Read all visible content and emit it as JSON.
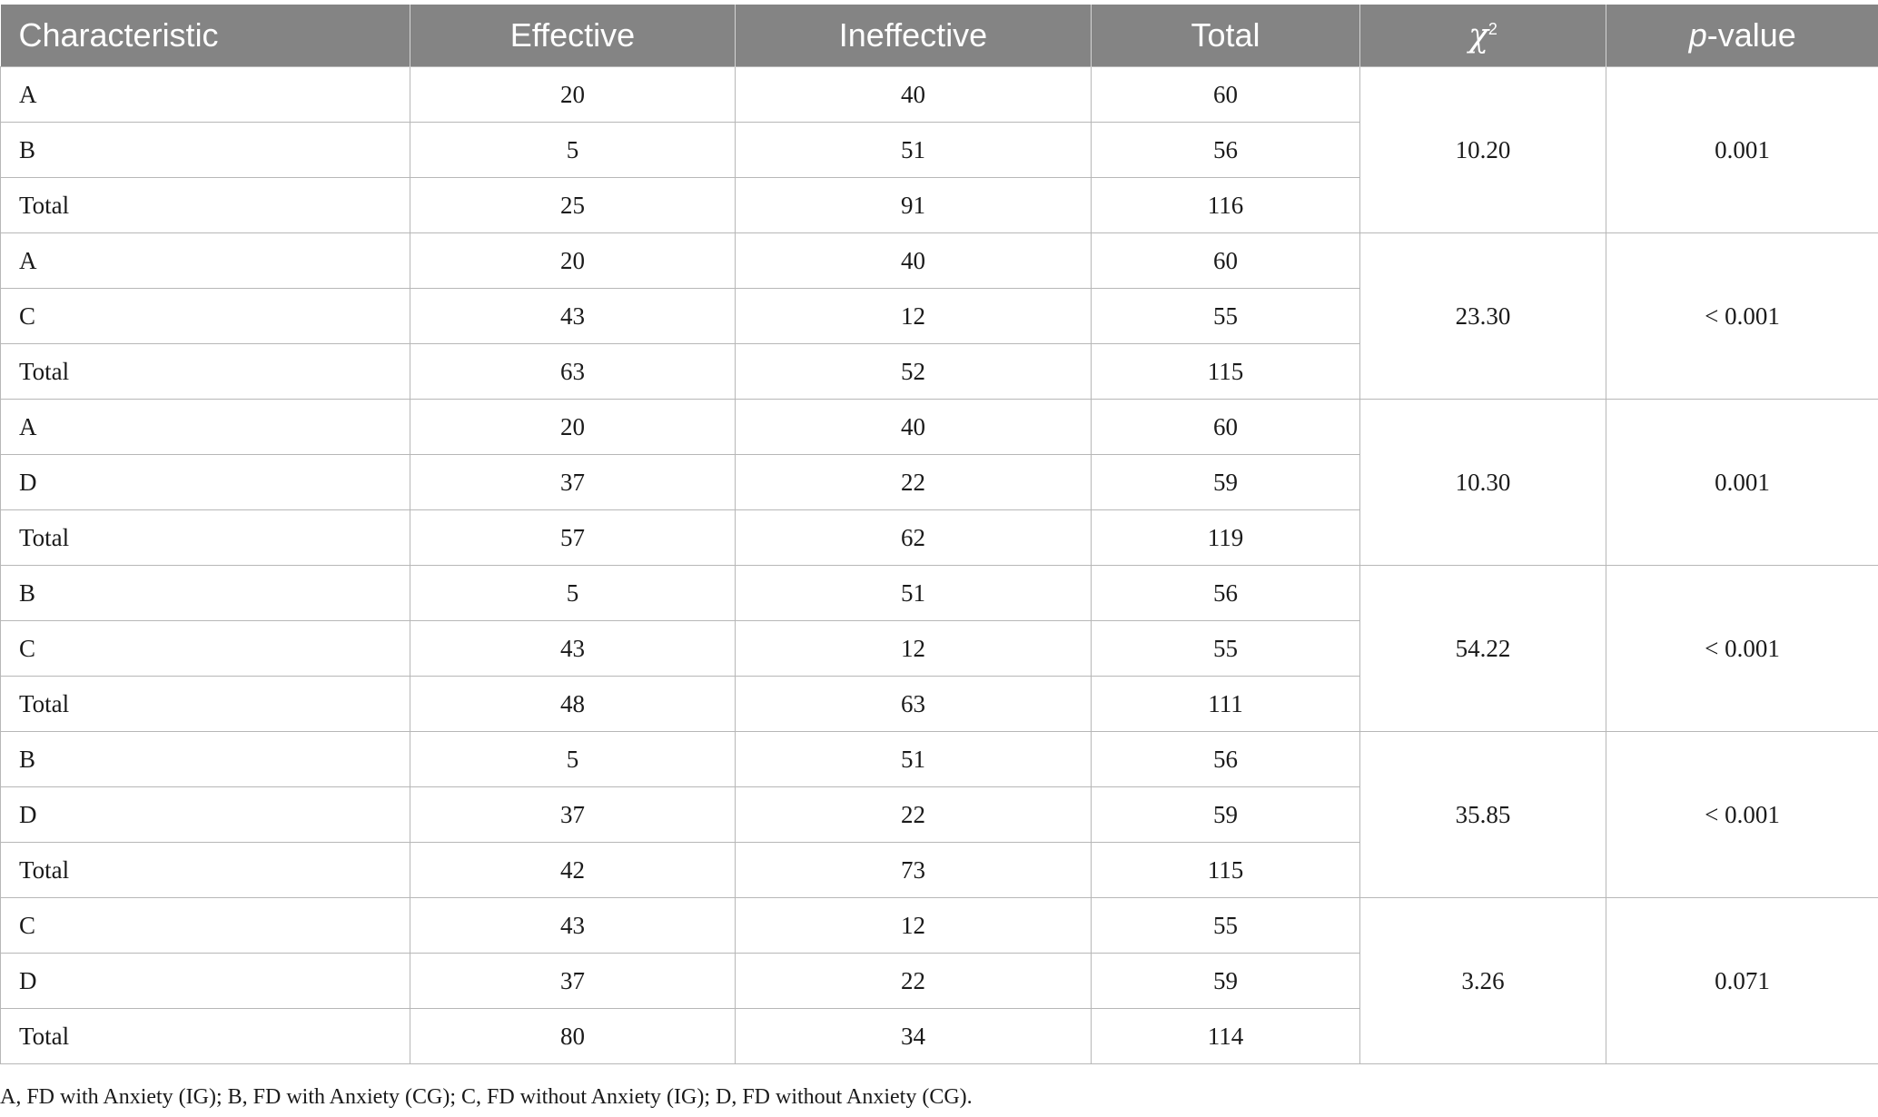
{
  "table": {
    "headers": {
      "characteristic": "Characteristic",
      "effective": "Effective",
      "ineffective": "Ineffective",
      "total": "Total",
      "chi_symbol": "χ",
      "chi_superscript": "2",
      "p_italic": "p",
      "p_rest": "-value"
    },
    "groups": [
      {
        "chi2": "10.20",
        "p": "0.001",
        "rows": [
          {
            "label": "A",
            "effective": "20",
            "ineffective": "40",
            "total": "60"
          },
          {
            "label": "B",
            "effective": "5",
            "ineffective": "51",
            "total": "56"
          },
          {
            "label": "Total",
            "effective": "25",
            "ineffective": "91",
            "total": "116"
          }
        ]
      },
      {
        "chi2": "23.30",
        "p": "< 0.001",
        "rows": [
          {
            "label": "A",
            "effective": "20",
            "ineffective": "40",
            "total": "60"
          },
          {
            "label": "C",
            "effective": "43",
            "ineffective": "12",
            "total": "55"
          },
          {
            "label": "Total",
            "effective": "63",
            "ineffective": "52",
            "total": "115"
          }
        ]
      },
      {
        "chi2": "10.30",
        "p": "0.001",
        "rows": [
          {
            "label": "A",
            "effective": "20",
            "ineffective": "40",
            "total": "60"
          },
          {
            "label": "D",
            "effective": "37",
            "ineffective": "22",
            "total": "59"
          },
          {
            "label": "Total",
            "effective": "57",
            "ineffective": "62",
            "total": "119"
          }
        ]
      },
      {
        "chi2": "54.22",
        "p": "< 0.001",
        "rows": [
          {
            "label": "B",
            "effective": "5",
            "ineffective": "51",
            "total": "56"
          },
          {
            "label": "C",
            "effective": "43",
            "ineffective": "12",
            "total": "55"
          },
          {
            "label": "Total",
            "effective": "48",
            "ineffective": "63",
            "total": "111"
          }
        ]
      },
      {
        "chi2": "35.85",
        "p": "< 0.001",
        "rows": [
          {
            "label": "B",
            "effective": "5",
            "ineffective": "51",
            "total": "56"
          },
          {
            "label": "D",
            "effective": "37",
            "ineffective": "22",
            "total": "59"
          },
          {
            "label": "Total",
            "effective": "42",
            "ineffective": "73",
            "total": "115"
          }
        ]
      },
      {
        "chi2": "3.26",
        "p": "0.071",
        "rows": [
          {
            "label": "C",
            "effective": "43",
            "ineffective": "12",
            "total": "55"
          },
          {
            "label": "D",
            "effective": "37",
            "ineffective": "22",
            "total": "59"
          },
          {
            "label": "Total",
            "effective": "80",
            "ineffective": "34",
            "total": "114"
          }
        ]
      }
    ]
  },
  "footnote": "A, FD with Anxiety (IG); B, FD with Anxiety (CG); C, FD without Anxiety (IG); D, FD without Anxiety (CG)."
}
